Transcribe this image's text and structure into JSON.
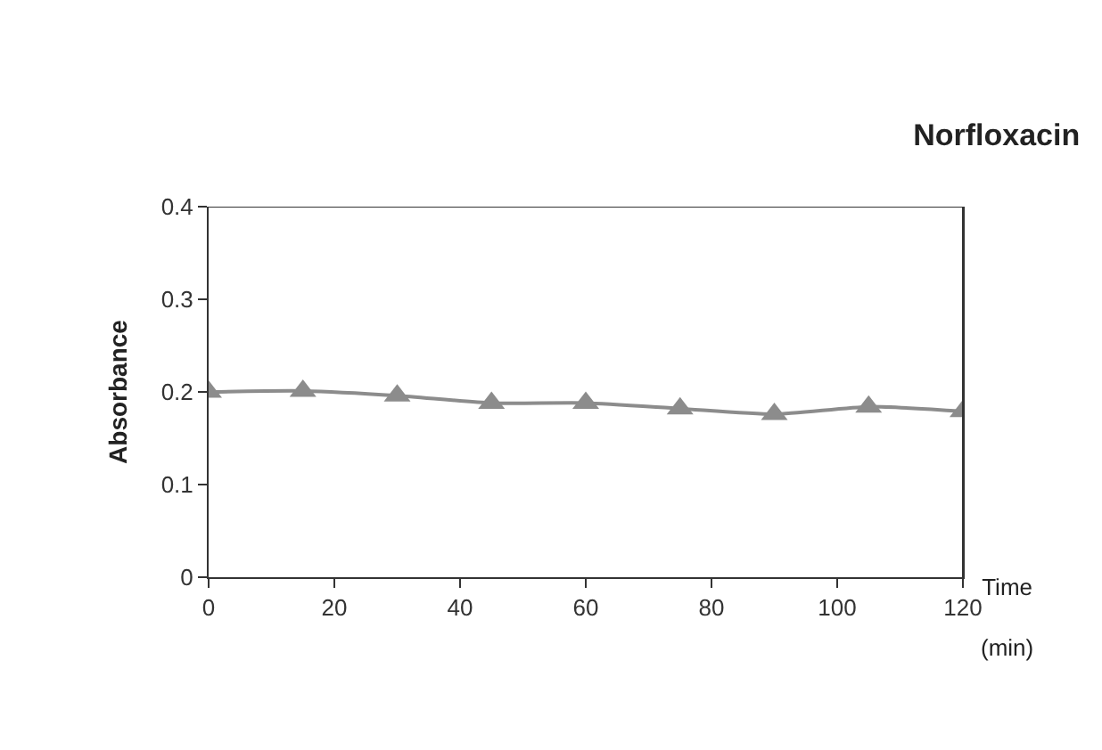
{
  "chart_data": {
    "type": "line",
    "title": "Norfloxacin",
    "xlabel": "Time (min)",
    "ylabel": "Absorbance",
    "x": [
      0,
      15,
      30,
      45,
      60,
      75,
      90,
      105,
      120
    ],
    "series": [
      {
        "color": "#8c8c8c",
        "values": [
          0.2,
          0.201,
          0.196,
          0.188,
          0.188,
          0.182,
          0.176,
          0.184,
          0.179
        ]
      }
    ],
    "xlim": [
      0,
      120
    ],
    "ylim": [
      0,
      0.4
    ],
    "xticks": [
      0,
      20,
      40,
      60,
      80,
      100,
      120
    ],
    "yticks": [
      0,
      0.1,
      0.2,
      0.3,
      0.4
    ],
    "marker": "triangle",
    "line_style": "solid"
  }
}
